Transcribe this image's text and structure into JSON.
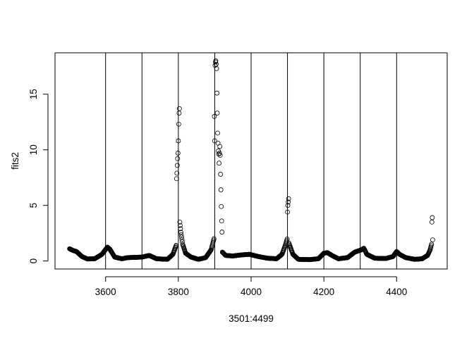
{
  "chart_data": {
    "type": "scatter",
    "title": "",
    "xlabel": "3501:4499",
    "ylabel": "fits2",
    "xlim": [
      3461,
      4539
    ],
    "ylim": [
      -0.72,
      18.72
    ],
    "x_ticks": [
      3600,
      3800,
      4000,
      4200,
      4400
    ],
    "y_ticks": [
      0,
      5,
      10,
      15
    ],
    "x_tick_labels": [
      "3600",
      "3800",
      "4000",
      "4200",
      "4400"
    ],
    "y_tick_labels": [
      "0",
      "5",
      "10",
      "15"
    ],
    "vertical_lines": [
      3600,
      3700,
      3800,
      3900,
      4000,
      4100,
      4200,
      4300,
      4400
    ],
    "marker": "open-circle",
    "grid": false,
    "baseline_profile": [
      [
        3501,
        1.1
      ],
      [
        3510,
        0.95
      ],
      [
        3520,
        0.85
      ],
      [
        3535,
        0.4
      ],
      [
        3550,
        0.18
      ],
      [
        3570,
        0.2
      ],
      [
        3590,
        0.6
      ],
      [
        3605,
        1.25
      ],
      [
        3612,
        1.05
      ],
      [
        3625,
        0.35
      ],
      [
        3645,
        0.2
      ],
      [
        3660,
        0.3
      ],
      [
        3700,
        0.35
      ],
      [
        3720,
        0.5
      ],
      [
        3740,
        0.2
      ],
      [
        3770,
        0.15
      ],
      [
        3785,
        0.6
      ],
      [
        3795,
        1.5
      ],
      [
        3800,
        2.4
      ],
      [
        3806,
        2.8
      ],
      [
        3812,
        1.5
      ],
      [
        3820,
        0.7
      ],
      [
        3835,
        0.35
      ],
      [
        3855,
        0.15
      ],
      [
        3875,
        0.3
      ],
      [
        3890,
        1.0
      ],
      [
        3898,
        2.0
      ],
      [
        3904,
        1.2
      ],
      [
        3918,
        0.9
      ],
      [
        3930,
        0.5
      ],
      [
        3950,
        0.45
      ],
      [
        3975,
        0.55
      ],
      [
        3995,
        0.6
      ],
      [
        4020,
        0.4
      ],
      [
        4045,
        0.25
      ],
      [
        4070,
        0.2
      ],
      [
        4085,
        0.6
      ],
      [
        4095,
        1.5
      ],
      [
        4100,
        2.1
      ],
      [
        4105,
        1.5
      ],
      [
        4115,
        0.6
      ],
      [
        4130,
        0.15
      ],
      [
        4160,
        0.12
      ],
      [
        4185,
        0.2
      ],
      [
        4200,
        0.7
      ],
      [
        4210,
        0.75
      ],
      [
        4222,
        0.5
      ],
      [
        4240,
        0.2
      ],
      [
        4265,
        0.3
      ],
      [
        4285,
        0.8
      ],
      [
        4303,
        1.0
      ],
      [
        4310,
        1.15
      ],
      [
        4318,
        0.6
      ],
      [
        4340,
        0.25
      ],
      [
        4370,
        0.22
      ],
      [
        4390,
        0.4
      ],
      [
        4400,
        0.85
      ],
      [
        4408,
        0.6
      ],
      [
        4425,
        0.3
      ],
      [
        4450,
        0.15
      ],
      [
        4470,
        0.2
      ],
      [
        4485,
        0.5
      ],
      [
        4492,
        1.0
      ],
      [
        4499,
        1.9
      ]
    ],
    "outliers": [
      [
        3795,
        7.4
      ],
      [
        3796,
        7.9
      ],
      [
        3797,
        8.6
      ],
      [
        3798,
        9.2
      ],
      [
        3799,
        9.7
      ],
      [
        3800,
        10.8
      ],
      [
        3801,
        12.3
      ],
      [
        3802,
        13.3
      ],
      [
        3803,
        13.7
      ],
      [
        3804,
        3.5
      ],
      [
        3805,
        3.2
      ],
      [
        3806,
        2.9
      ],
      [
        3899,
        13.0
      ],
      [
        3900,
        10.8
      ],
      [
        3901,
        17.6
      ],
      [
        3902,
        17.9
      ],
      [
        3903,
        18.0
      ],
      [
        3904,
        17.7
      ],
      [
        3905,
        17.3
      ],
      [
        3906,
        15.1
      ],
      [
        3907,
        13.3
      ],
      [
        3908,
        11.5
      ],
      [
        3909,
        10.6
      ],
      [
        3910,
        9.9
      ],
      [
        3911,
        9.6
      ],
      [
        3912,
        8.8
      ],
      [
        3913,
        9.7
      ],
      [
        3914,
        10.3
      ],
      [
        3915,
        9.5
      ],
      [
        3916,
        7.8
      ],
      [
        3917,
        6.4
      ],
      [
        3918,
        4.9
      ],
      [
        3919,
        3.6
      ],
      [
        3920,
        2.6
      ],
      [
        4100,
        4.4
      ],
      [
        4101,
        5.0
      ],
      [
        4102,
        5.3
      ],
      [
        4103,
        5.6
      ],
      [
        4497,
        3.5
      ],
      [
        4498,
        3.9
      ]
    ]
  }
}
